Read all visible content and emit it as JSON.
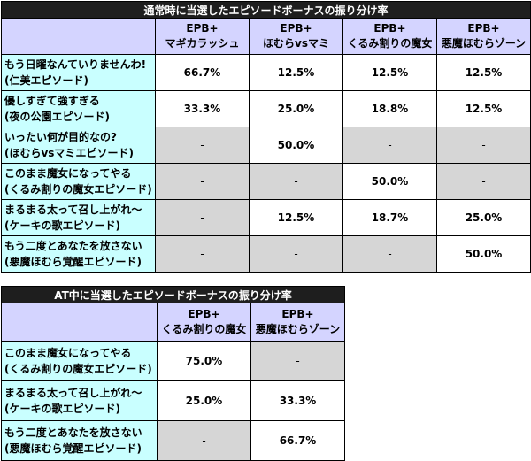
{
  "table1": {
    "title": "通常時に当選したエピソードボーナスの振り分け率",
    "headers": [
      {
        "l1": "EPB+",
        "l2": "マギカラッシュ"
      },
      {
        "l1": "EPB+",
        "l2": "ほむらvsマミ"
      },
      {
        "l1": "EPB+",
        "l2": "くるみ割りの魔女"
      },
      {
        "l1": "EPB+",
        "l2": "悪魔ほむらゾーン"
      }
    ],
    "rows": [
      {
        "l1": "もう日曜なんていりませんわ!",
        "l2": "(仁美エピソード)",
        "cells": [
          "66.7%",
          "12.5%",
          "12.5%",
          "12.5%"
        ]
      },
      {
        "l1": "優しすぎて強すぎる",
        "l2": "(夜の公園エピソード)",
        "cells": [
          "33.3%",
          "25.0%",
          "18.8%",
          "12.5%"
        ]
      },
      {
        "l1": "いったい何が目的なの?",
        "l2": "(ほむらvsマミエピソード)",
        "cells": [
          "-",
          "50.0%",
          "-",
          "-"
        ]
      },
      {
        "l1": "このまま魔女になってやる",
        "l2": "(くるみ割りの魔女エピソード)",
        "cells": [
          "-",
          "-",
          "50.0%",
          "-"
        ]
      },
      {
        "l1": "まるまる太って召し上がれ～",
        "l2": "(ケーキの歌エピソード)",
        "cells": [
          "-",
          "12.5%",
          "18.7%",
          "25.0%"
        ]
      },
      {
        "l1": "もう二度とあなたを放さない",
        "l2": "(悪魔ほむら覚醒エピソード)",
        "cells": [
          "-",
          "-",
          "-",
          "50.0%"
        ]
      }
    ]
  },
  "table2": {
    "title": "AT中に当選したエピソードボーナスの振り分け率",
    "headers": [
      {
        "l1": "EPB+",
        "l2": "くるみ割りの魔女"
      },
      {
        "l1": "EPB+",
        "l2": "悪魔ほむらゾーン"
      }
    ],
    "rows": [
      {
        "l1": "このまま魔女になってやる",
        "l2": "(くるみ割りの魔女エピソード)",
        "cells": [
          "75.0%",
          "-"
        ]
      },
      {
        "l1": "まるまる太って召し上がれ～",
        "l2": "(ケーキの歌エピソード)",
        "cells": [
          "25.0%",
          "33.3%"
        ]
      },
      {
        "l1": "もう二度とあなたを放さない",
        "l2": "(悪魔ほむら覚醒エピソード)",
        "cells": [
          "-",
          "66.7%"
        ]
      }
    ]
  },
  "colors": {
    "title_bg": "#1e1e1e",
    "header_bg": "#d4d4ff",
    "label_bg": "#c9ffff",
    "empty_cell_bg": "#d6d6d6",
    "value_cell_bg": "#ffffff"
  }
}
